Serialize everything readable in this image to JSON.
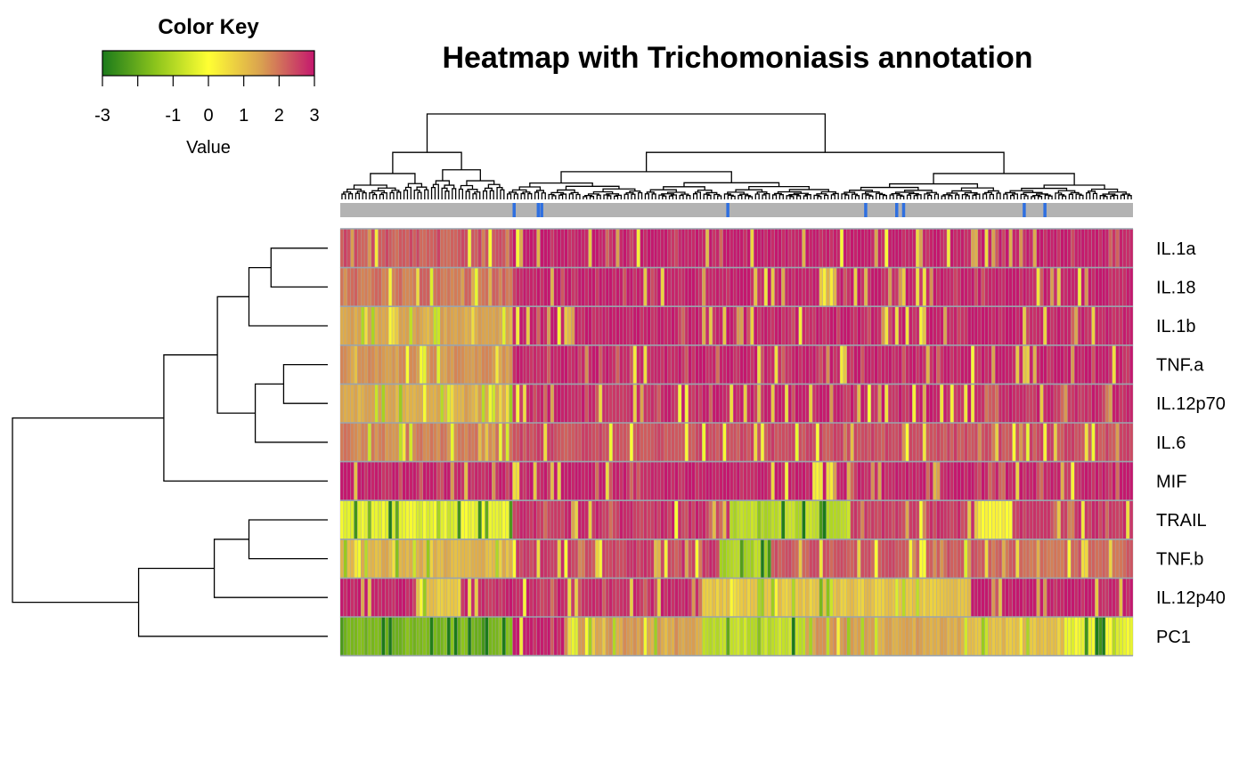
{
  "chart_data": {
    "type": "heatmap",
    "title": "Heatmap with Trichomoniasis annotation",
    "rows": [
      "IL.1a",
      "IL.18",
      "IL.1b",
      "TNF.a",
      "IL.12p70",
      "IL.6",
      "MIF",
      "TRAIL",
      "TNF.b",
      "IL.12p40",
      "PC1"
    ],
    "n_columns": 230,
    "color_key": {
      "title": "Color Key",
      "xlabel": "Value",
      "range": [
        -3,
        3
      ],
      "ticks": [
        -3,
        -1,
        0,
        1,
        2,
        3
      ],
      "tick_positions": [
        -3,
        -2,
        -1,
        0,
        1,
        2,
        3
      ],
      "colors": [
        "#1b7a1b",
        "#8cc41c",
        "#ffff33",
        "#d9a050",
        "#c4176e"
      ]
    },
    "annotation": {
      "default_color": "#b3b3b3",
      "flag_color": "#2e6fe0",
      "flagged_columns": [
        50,
        57,
        58,
        112,
        152,
        161,
        163,
        198,
        204
      ]
    },
    "row_profiles": [
      {
        "row": "IL.1a",
        "segments": [
          [
            0,
            50,
            2.3
          ],
          [
            50,
            230,
            2.9
          ]
        ]
      },
      {
        "row": "IL.18",
        "segments": [
          [
            0,
            50,
            2.0
          ],
          [
            50,
            230,
            2.9
          ]
        ]
      },
      {
        "row": "IL.1b",
        "segments": [
          [
            0,
            50,
            1.4
          ],
          [
            50,
            230,
            2.9
          ]
        ]
      },
      {
        "row": "TNF.a",
        "segments": [
          [
            0,
            50,
            1.6
          ],
          [
            50,
            230,
            2.9
          ]
        ]
      },
      {
        "row": "IL.12p70",
        "segments": [
          [
            0,
            50,
            1.3
          ],
          [
            50,
            230,
            2.8
          ]
        ]
      },
      {
        "row": "IL.6",
        "segments": [
          [
            0,
            50,
            1.8
          ],
          [
            50,
            230,
            2.4
          ]
        ]
      },
      {
        "row": "MIF",
        "segments": [
          [
            0,
            230,
            2.9
          ]
        ]
      },
      {
        "row": "TRAIL",
        "segments": [
          [
            0,
            50,
            -0.3
          ],
          [
            50,
            113,
            2.7
          ],
          [
            113,
            148,
            -0.9
          ],
          [
            148,
            185,
            2.6
          ],
          [
            185,
            195,
            0.2
          ],
          [
            195,
            230,
            2.6
          ]
        ]
      },
      {
        "row": "TNF.b",
        "segments": [
          [
            0,
            50,
            1.2
          ],
          [
            50,
            110,
            2.6
          ],
          [
            110,
            125,
            -1.0
          ],
          [
            125,
            185,
            2.3
          ],
          [
            185,
            230,
            2.1
          ]
        ]
      },
      {
        "row": "IL.12p40",
        "segments": [
          [
            0,
            22,
            2.9
          ],
          [
            22,
            35,
            0.9
          ],
          [
            35,
            105,
            2.8
          ],
          [
            105,
            182,
            0.9
          ],
          [
            182,
            230,
            2.9
          ]
        ]
      },
      {
        "row": "PC1",
        "segments": [
          [
            0,
            50,
            -1.7
          ],
          [
            50,
            65,
            2.9
          ],
          [
            65,
            105,
            1.5
          ],
          [
            105,
            135,
            -0.8
          ],
          [
            135,
            150,
            1.5
          ],
          [
            150,
            180,
            1.4
          ],
          [
            180,
            210,
            1.0
          ],
          [
            210,
            230,
            -0.2
          ]
        ]
      }
    ],
    "row_dendrogram": {
      "merges": [
        [
          0,
          1
        ],
        [
          -1,
          2
        ],
        [
          3,
          4
        ],
        [
          -3,
          5
        ],
        [
          -2,
          -4
        ],
        [
          -5,
          6
        ],
        [
          7,
          8
        ],
        [
          -7,
          9
        ],
        [
          -8,
          10
        ],
        [
          -6,
          -9
        ]
      ]
    },
    "column_dendrogram": {
      "top_splits_at_columns": [
        48,
        105,
        145,
        172
      ]
    }
  }
}
